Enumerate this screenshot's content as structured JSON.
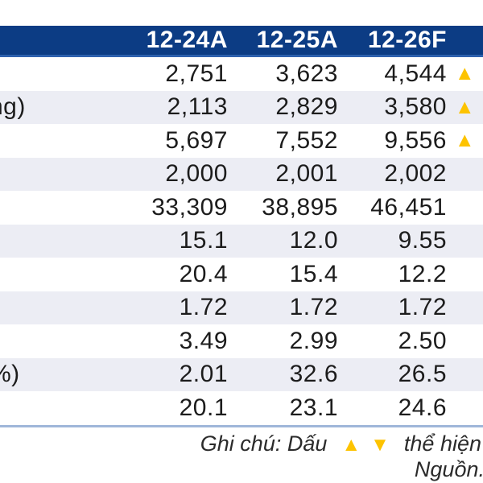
{
  "table": {
    "columns": [
      "12-24A",
      "12-25A",
      "12-26F"
    ],
    "rows": [
      {
        "label": "",
        "v1": "2,751",
        "v2": "3,623",
        "v3": "4,544",
        "arrow": "▲"
      },
      {
        "label": "ng)",
        "v1": "2,113",
        "v2": "2,829",
        "v3": "3,580",
        "arrow": "▲"
      },
      {
        "label": "",
        "v1": "5,697",
        "v2": "7,552",
        "v3": "9,556",
        "arrow": "▲"
      },
      {
        "label": "",
        "v1": "2,000",
        "v2": "2,001",
        "v3": "2,002",
        "arrow": ""
      },
      {
        "label": "",
        "v1": "33,309",
        "v2": "38,895",
        "v3": "46,451",
        "arrow": ""
      },
      {
        "label": "",
        "v1": "15.1",
        "v2": "12.0",
        "v3": "9.55",
        "arrow": ""
      },
      {
        "label": "",
        "v1": "20.4",
        "v2": "15.4",
        "v3": "12.2",
        "arrow": ""
      },
      {
        "label": "",
        "v1": "1.72",
        "v2": "1.72",
        "v3": "1.72",
        "arrow": ""
      },
      {
        "label": "",
        "v1": "3.49",
        "v2": "2.99",
        "v3": "2.50",
        "arrow": ""
      },
      {
        "label": "%)",
        "v1": "2.01",
        "v2": "32.6",
        "v3": "26.5",
        "arrow": ""
      },
      {
        "label": "",
        "v1": "20.1",
        "v2": "23.1",
        "v3": "24.6",
        "arrow": ""
      }
    ]
  },
  "footer": {
    "note_prefix": "Ghi chú: Dấu",
    "up_symbol": "▲",
    "down_symbol": "▼",
    "note_suffix": "thể hiện",
    "source": "Nguồn."
  },
  "colors": {
    "header_bg": "#0C3C84",
    "header_border": "#2E61AE",
    "header_text": "#FFFFFF",
    "row_alt_bg": "#ECEDF4",
    "body_text": "#1C1C1C",
    "triangle_gold": "#FDC300",
    "separator": "#9FB6D9"
  }
}
